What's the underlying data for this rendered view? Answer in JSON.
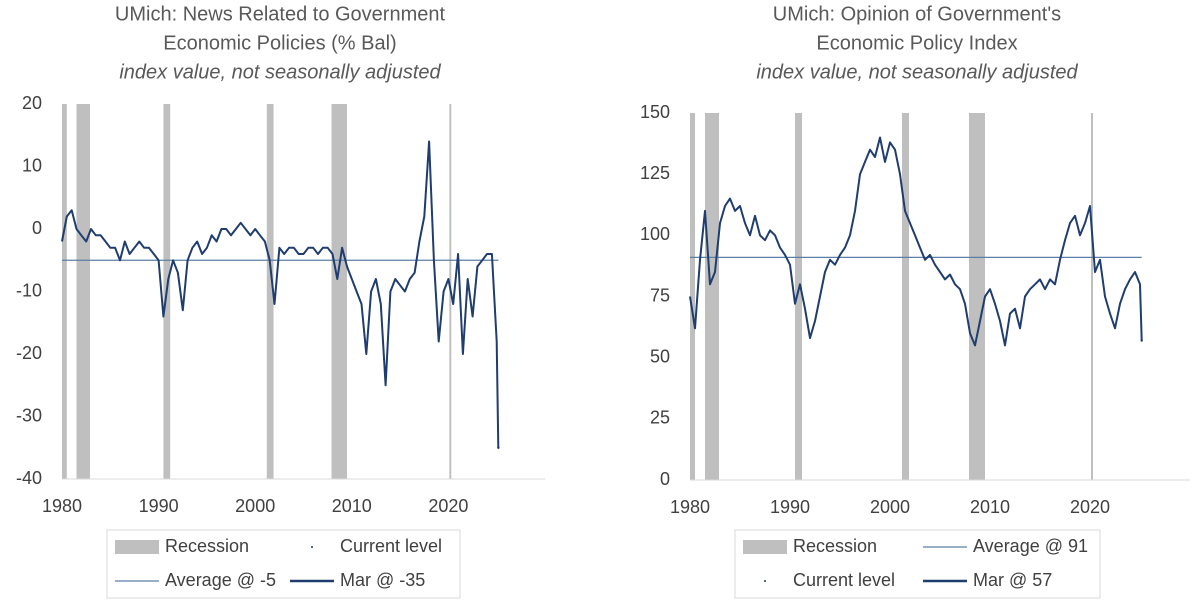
{
  "chart_data": [
    {
      "type": "line",
      "title": [
        "UMich: News Related to Government",
        "Economic Policies (% Bal)"
      ],
      "subtitle": "index value, not seasonally adjusted",
      "xlim": [
        1980,
        2030
      ],
      "xticks": [
        1980,
        1990,
        2000,
        2010,
        2020
      ],
      "ylim": [
        -40,
        20
      ],
      "yticks": [
        20,
        10,
        0,
        -10,
        -20,
        -30,
        -40
      ],
      "series": [
        {
          "name": "Recession",
          "type": "recession",
          "color": "#bfbfbf",
          "spans": [
            [
              1980.0,
              1980.5
            ],
            [
              1981.5,
              1982.9
            ],
            [
              1990.5,
              1991.2
            ],
            [
              2001.2,
              2001.9
            ],
            [
              2007.9,
              2009.5
            ],
            [
              2020.1,
              2020.3
            ]
          ]
        },
        {
          "name": "Current level",
          "type": "point",
          "color": "#1f3d6e",
          "x": [
            2025.17
          ],
          "values": [
            -35
          ]
        },
        {
          "name": "Average @ -5",
          "type": "hline",
          "color": "#5b7fa6",
          "values": [
            -5
          ]
        },
        {
          "name": "Mar @ -35",
          "type": "line",
          "color": "#1f3d6e",
          "x": [
            1980,
            1980.5,
            1981,
            1981.5,
            1982,
            1982.5,
            1983,
            1983.5,
            1984,
            1984.5,
            1985,
            1985.5,
            1986,
            1986.5,
            1987,
            1987.5,
            1988,
            1988.5,
            1989,
            1989.5,
            1990,
            1990.5,
            1991,
            1991.5,
            1992,
            1992.5,
            1993,
            1993.5,
            1994,
            1994.5,
            1995,
            1995.5,
            1996,
            1996.5,
            1997,
            1997.5,
            1998,
            1998.5,
            1999,
            1999.5,
            2000,
            2000.5,
            2001,
            2001.5,
            2002,
            2002.5,
            2003,
            2003.5,
            2004,
            2004.5,
            2005,
            2005.5,
            2006,
            2006.5,
            2007,
            2007.5,
            2008,
            2008.5,
            2009,
            2009.5,
            2010,
            2010.5,
            2011,
            2011.5,
            2012,
            2012.5,
            2013,
            2013.5,
            2014,
            2014.5,
            2015,
            2015.5,
            2016,
            2016.5,
            2017,
            2017.5,
            2018,
            2018.5,
            2019,
            2019.5,
            2020,
            2020.5,
            2021,
            2021.5,
            2022,
            2022.5,
            2023,
            2023.5,
            2024,
            2024.5,
            2025,
            2025.17
          ],
          "values": [
            -2,
            2,
            3,
            0,
            -1,
            -2,
            0,
            -1,
            -1,
            -2,
            -3,
            -3,
            -5,
            -2,
            -4,
            -3,
            -2,
            -3,
            -3,
            -4,
            -5,
            -14,
            -8,
            -5,
            -7,
            -13,
            -5,
            -3,
            -2,
            -4,
            -3,
            -1,
            -2,
            0,
            0,
            -1,
            0,
            1,
            0,
            -1,
            0,
            -1,
            -2,
            -5,
            -12,
            -3,
            -4,
            -3,
            -3,
            -4,
            -4,
            -3,
            -3,
            -4,
            -3,
            -3,
            -4,
            -8,
            -3,
            -6,
            -8,
            -10,
            -12,
            -20,
            -10,
            -8,
            -12,
            -25,
            -10,
            -8,
            -9,
            -10,
            -8,
            -7,
            -2,
            2,
            14,
            -5,
            -18,
            -10,
            -8,
            -12,
            -4,
            -20,
            -8,
            -14,
            -6,
            -5,
            -4,
            -4,
            -18,
            -35
          ]
        }
      ]
    },
    {
      "type": "line",
      "title": [
        "UMich: Opinion of Government's",
        "Economic Policy Index"
      ],
      "subtitle": "index value, not seasonally adjusted",
      "xlim": [
        1980,
        2030
      ],
      "xticks": [
        1980,
        1990,
        2000,
        2010,
        2020
      ],
      "ylim": [
        0,
        150
      ],
      "yticks": [
        150,
        125,
        100,
        75,
        50,
        25,
        0
      ],
      "series": [
        {
          "name": "Recession",
          "type": "recession",
          "color": "#bfbfbf",
          "spans": [
            [
              1980.0,
              1980.5
            ],
            [
              1981.5,
              1982.9
            ],
            [
              1990.5,
              1991.2
            ],
            [
              2001.2,
              2001.9
            ],
            [
              2007.9,
              2009.5
            ],
            [
              2020.1,
              2020.3
            ]
          ]
        },
        {
          "name": "Average @ 91",
          "type": "hline",
          "color": "#5b7fa6",
          "values": [
            91
          ]
        },
        {
          "name": "Current level",
          "type": "point",
          "color": "#1f3d6e",
          "x": [
            2025.17
          ],
          "values": [
            57
          ]
        },
        {
          "name": "Mar @ 57",
          "type": "line",
          "color": "#1f3d6e",
          "x": [
            1980,
            1980.5,
            1981,
            1981.5,
            1982,
            1982.5,
            1983,
            1983.5,
            1984,
            1984.5,
            1985,
            1985.5,
            1986,
            1986.5,
            1987,
            1987.5,
            1988,
            1988.5,
            1989,
            1989.5,
            1990,
            1990.5,
            1991,
            1991.5,
            1992,
            1992.5,
            1993,
            1993.5,
            1994,
            1994.5,
            1995,
            1995.5,
            1996,
            1996.5,
            1997,
            1997.5,
            1998,
            1998.5,
            1999,
            1999.5,
            2000,
            2000.5,
            2001,
            2001.5,
            2002,
            2002.5,
            2003,
            2003.5,
            2004,
            2004.5,
            2005,
            2005.5,
            2006,
            2006.5,
            2007,
            2007.5,
            2008,
            2008.5,
            2009,
            2009.5,
            2010,
            2010.5,
            2011,
            2011.5,
            2012,
            2012.5,
            2013,
            2013.5,
            2014,
            2014.5,
            2015,
            2015.5,
            2016,
            2016.5,
            2017,
            2017.5,
            2018,
            2018.5,
            2019,
            2019.5,
            2020,
            2020.5,
            2021,
            2021.5,
            2022,
            2022.5,
            2023,
            2023.5,
            2024,
            2024.5,
            2025,
            2025.17
          ],
          "values": [
            75,
            62,
            90,
            110,
            80,
            85,
            105,
            112,
            115,
            110,
            112,
            105,
            100,
            108,
            100,
            98,
            102,
            100,
            95,
            92,
            88,
            72,
            80,
            70,
            58,
            65,
            75,
            85,
            90,
            88,
            92,
            95,
            100,
            110,
            125,
            130,
            135,
            132,
            140,
            130,
            138,
            135,
            125,
            110,
            105,
            100,
            95,
            90,
            92,
            88,
            85,
            82,
            84,
            80,
            78,
            72,
            60,
            55,
            65,
            75,
            78,
            72,
            65,
            55,
            68,
            70,
            62,
            75,
            78,
            80,
            82,
            78,
            82,
            80,
            90,
            98,
            105,
            108,
            100,
            105,
            112,
            85,
            90,
            75,
            68,
            62,
            72,
            78,
            82,
            85,
            80,
            57
          ]
        }
      ]
    }
  ]
}
